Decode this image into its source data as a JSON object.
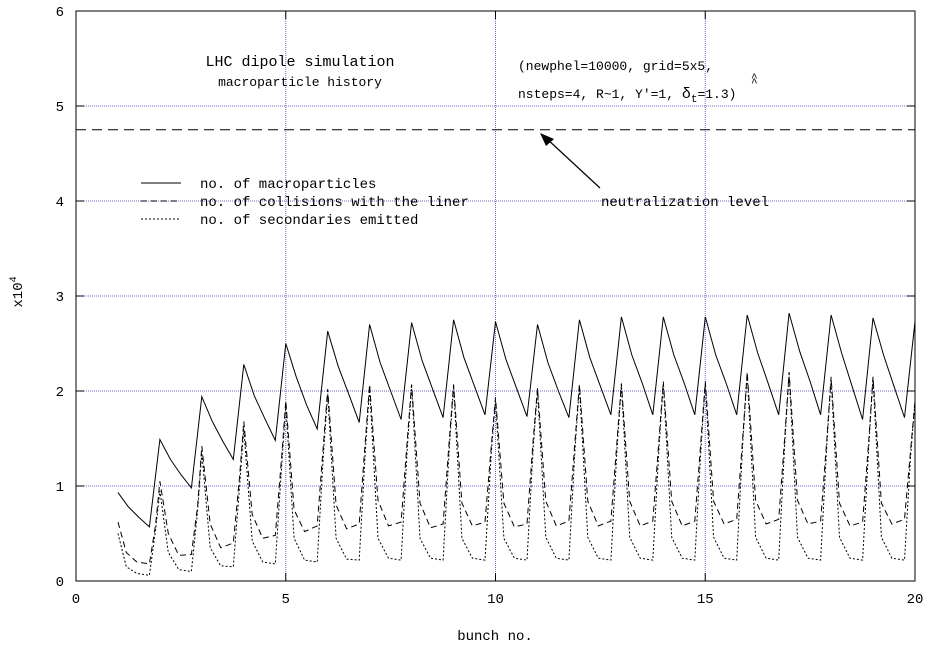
{
  "chart_data": {
    "type": "line",
    "title": "LHC dipole simulation",
    "subtitle": "macroparticle history",
    "params_line1": "(newphel=10000, grid=5x5,",
    "params_line2": "nsteps=4, R~1, Y'=1, ",
    "params_delta": "δ",
    "params_sub": "t",
    "params_end": "=1.3)",
    "xlabel": "bunch no.",
    "ylabel": "x10",
    "ylabel_exp": "4",
    "xlim": [
      0,
      20
    ],
    "ylim": [
      0,
      6
    ],
    "x_ticks": [
      "0",
      "5",
      "10",
      "15",
      "20"
    ],
    "y_ticks": [
      "0",
      "1",
      "2",
      "3",
      "4",
      "5",
      "6"
    ],
    "grid": true,
    "grid_color": "#6a6acc",
    "neutralization_level": 4.75,
    "annotation": "neutralization level",
    "legend": [
      {
        "label": "no. of macroparticles",
        "style": "solid"
      },
      {
        "label": "no. of collisions with the liner",
        "style": "dashed"
      },
      {
        "label": "no. of secondaries emitted",
        "style": "dotted"
      }
    ],
    "series": [
      {
        "style": "solid",
        "x": [
          1.0,
          1.25,
          1.5,
          1.75,
          2.0,
          2.25,
          2.5,
          2.75,
          3.0,
          3.25,
          3.5,
          3.75,
          4.0,
          4.25,
          4.5,
          4.75,
          5.0,
          5.25,
          5.5,
          5.75,
          6.0,
          6.25,
          6.5,
          6.75,
          7.0,
          7.25,
          7.5,
          7.75,
          8.0,
          8.25,
          8.5,
          8.75,
          9.0,
          9.25,
          9.5,
          9.75,
          10.0,
          10.25,
          10.5,
          10.75,
          11.0,
          11.25,
          11.5,
          11.75,
          12.0,
          12.25,
          12.5,
          12.75,
          13.0,
          13.25,
          13.5,
          13.75,
          14.0,
          14.25,
          14.5,
          14.75,
          15.0,
          15.25,
          15.5,
          15.75,
          16.0,
          16.25,
          16.5,
          16.75,
          17.0,
          17.25,
          17.5,
          17.75,
          18.0,
          18.25,
          18.5,
          18.75,
          19.0,
          19.25,
          19.5,
          19.75,
          20.0
        ],
        "values": [
          0.93,
          0.78,
          0.67,
          0.57,
          1.49,
          1.28,
          1.12,
          0.98,
          1.94,
          1.68,
          1.47,
          1.28,
          2.28,
          1.95,
          1.71,
          1.48,
          2.5,
          2.15,
          1.85,
          1.6,
          2.63,
          2.26,
          1.97,
          1.67,
          2.7,
          2.3,
          2.0,
          1.7,
          2.72,
          2.32,
          2.02,
          1.72,
          2.75,
          2.35,
          2.05,
          1.75,
          2.73,
          2.33,
          2.03,
          1.73,
          2.7,
          2.3,
          2.0,
          1.72,
          2.75,
          2.35,
          2.05,
          1.75,
          2.78,
          2.38,
          2.08,
          1.75,
          2.78,
          2.38,
          2.08,
          1.75,
          2.78,
          2.38,
          2.08,
          1.75,
          2.8,
          2.4,
          2.08,
          1.75,
          2.82,
          2.42,
          2.1,
          1.75,
          2.8,
          2.4,
          2.05,
          1.7,
          2.77,
          2.38,
          2.05,
          1.72,
          2.73
        ]
      },
      {
        "style": "dashed",
        "x": [
          1.0,
          1.2,
          1.45,
          1.75,
          1.9,
          2.0,
          2.2,
          2.45,
          2.75,
          2.9,
          3.0,
          3.2,
          3.45,
          3.75,
          3.9,
          4.0,
          4.2,
          4.45,
          4.75,
          4.9,
          5.0,
          5.2,
          5.45,
          5.75,
          5.9,
          6.0,
          6.2,
          6.45,
          6.75,
          6.9,
          7.0,
          7.2,
          7.45,
          7.75,
          7.9,
          8.0,
          8.2,
          8.45,
          8.75,
          8.9,
          9.0,
          9.2,
          9.45,
          9.75,
          9.9,
          10.0,
          10.2,
          10.45,
          10.75,
          10.9,
          11.0,
          11.2,
          11.45,
          11.75,
          11.9,
          12.0,
          12.2,
          12.45,
          12.75,
          12.9,
          13.0,
          13.2,
          13.45,
          13.75,
          13.9,
          14.0,
          14.2,
          14.45,
          14.75,
          14.9,
          15.0,
          15.2,
          15.45,
          15.75,
          15.9,
          16.0,
          16.2,
          16.45,
          16.75,
          16.9,
          17.0,
          17.2,
          17.45,
          17.75,
          17.9,
          18.0,
          18.2,
          18.45,
          18.75,
          18.9,
          19.0,
          19.2,
          19.45,
          19.75,
          19.9,
          20.0
        ],
        "values": [
          0.62,
          0.3,
          0.2,
          0.18,
          0.6,
          1.05,
          0.5,
          0.27,
          0.28,
          0.8,
          1.42,
          0.6,
          0.35,
          0.4,
          1.1,
          1.68,
          0.7,
          0.45,
          0.48,
          1.3,
          1.9,
          0.75,
          0.52,
          0.58,
          1.45,
          2.02,
          0.8,
          0.55,
          0.6,
          1.5,
          2.07,
          0.85,
          0.58,
          0.62,
          1.5,
          2.07,
          0.82,
          0.56,
          0.6,
          1.5,
          2.07,
          0.82,
          0.58,
          0.62,
          1.42,
          1.93,
          0.82,
          0.57,
          0.6,
          1.5,
          2.03,
          0.84,
          0.58,
          0.63,
          1.5,
          2.07,
          0.84,
          0.58,
          0.63,
          1.5,
          2.08,
          0.84,
          0.58,
          0.63,
          1.5,
          2.1,
          0.84,
          0.58,
          0.63,
          1.5,
          2.1,
          0.84,
          0.6,
          0.65,
          1.55,
          2.2,
          0.85,
          0.6,
          0.65,
          1.55,
          2.2,
          0.85,
          0.6,
          0.63,
          1.5,
          2.15,
          0.82,
          0.58,
          0.62,
          1.5,
          2.15,
          0.82,
          0.6,
          0.65,
          1.4,
          1.9
        ]
      },
      {
        "style": "dotted",
        "x": [
          1.0,
          1.2,
          1.45,
          1.75,
          1.9,
          2.0,
          2.2,
          2.45,
          2.75,
          2.9,
          3.0,
          3.2,
          3.45,
          3.75,
          3.9,
          4.0,
          4.2,
          4.45,
          4.75,
          4.9,
          5.0,
          5.2,
          5.45,
          5.75,
          5.9,
          6.0,
          6.2,
          6.45,
          6.75,
          6.9,
          7.0,
          7.2,
          7.45,
          7.75,
          7.9,
          8.0,
          8.2,
          8.45,
          8.75,
          8.9,
          9.0,
          9.2,
          9.45,
          9.75,
          9.9,
          10.0,
          10.2,
          10.45,
          10.75,
          10.9,
          11.0,
          11.2,
          11.45,
          11.75,
          11.9,
          12.0,
          12.2,
          12.45,
          12.75,
          12.9,
          13.0,
          13.2,
          13.45,
          13.75,
          13.9,
          14.0,
          14.2,
          14.45,
          14.75,
          14.9,
          15.0,
          15.2,
          15.45,
          15.75,
          15.9,
          16.0,
          16.2,
          16.45,
          16.75,
          16.9,
          17.0,
          17.2,
          17.45,
          17.75,
          17.9,
          18.0,
          18.2,
          18.45,
          18.75,
          18.9,
          19.0,
          19.2,
          19.45,
          19.75,
          19.9,
          20.0
        ],
        "values": [
          0.5,
          0.15,
          0.08,
          0.06,
          0.55,
          0.95,
          0.3,
          0.12,
          0.1,
          0.75,
          1.35,
          0.35,
          0.16,
          0.15,
          1.0,
          1.6,
          0.42,
          0.2,
          0.18,
          1.2,
          1.85,
          0.45,
          0.22,
          0.2,
          1.35,
          1.97,
          0.45,
          0.23,
          0.22,
          1.4,
          2.03,
          0.45,
          0.24,
          0.22,
          1.42,
          2.05,
          0.45,
          0.24,
          0.22,
          1.42,
          2.05,
          0.45,
          0.24,
          0.22,
          1.35,
          1.9,
          0.45,
          0.24,
          0.22,
          1.42,
          2.0,
          0.46,
          0.24,
          0.22,
          1.42,
          2.05,
          0.46,
          0.24,
          0.22,
          1.42,
          2.07,
          0.46,
          0.24,
          0.22,
          1.42,
          2.08,
          0.46,
          0.24,
          0.22,
          1.42,
          2.08,
          0.46,
          0.24,
          0.22,
          1.5,
          2.18,
          0.46,
          0.24,
          0.22,
          1.5,
          2.18,
          0.46,
          0.24,
          0.22,
          1.45,
          2.13,
          0.46,
          0.24,
          0.22,
          1.45,
          2.13,
          0.46,
          0.24,
          0.22,
          1.35,
          1.88
        ]
      }
    ]
  }
}
